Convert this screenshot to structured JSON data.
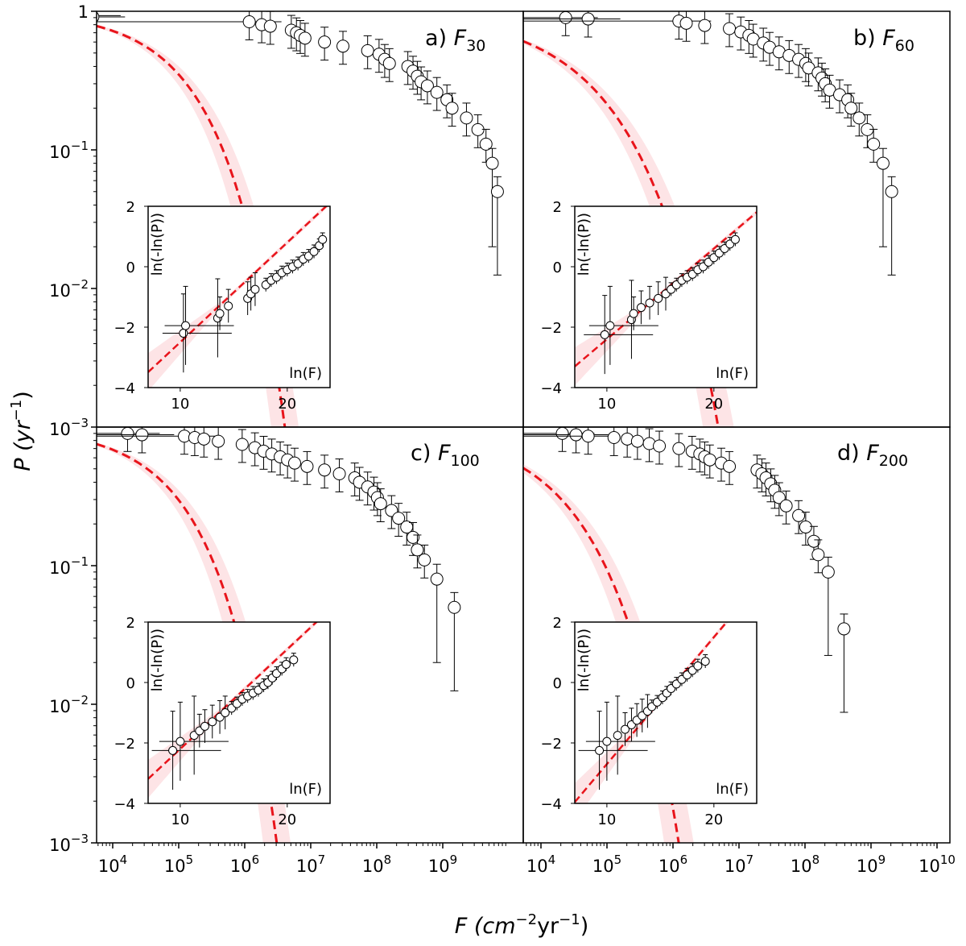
{
  "figure": {
    "ylabel": {
      "pre": "P (yr",
      "sup": "−1",
      "post": ")"
    },
    "xlabel": {
      "pre": "F (cm",
      "sup1": "−2",
      "mid": "yr",
      "sup2": "−1",
      "post": ")"
    },
    "y_ticks": [
      {
        "base": "1",
        "exp": ""
      },
      {
        "base": "10",
        "exp": "−1"
      },
      {
        "base": "10",
        "exp": "−2"
      },
      {
        "base": "10",
        "exp": "−3"
      }
    ],
    "x_ticks_left": [
      {
        "base": "10",
        "exp": "4"
      },
      {
        "base": "10",
        "exp": "5"
      },
      {
        "base": "10",
        "exp": "6"
      },
      {
        "base": "10",
        "exp": "7"
      },
      {
        "base": "10",
        "exp": "8"
      },
      {
        "base": "10",
        "exp": "9"
      }
    ],
    "x_ticks_right": [
      {
        "base": "10",
        "exp": "4"
      },
      {
        "base": "10",
        "exp": "5"
      },
      {
        "base": "10",
        "exp": "6"
      },
      {
        "base": "10",
        "exp": "7"
      },
      {
        "base": "10",
        "exp": "8"
      },
      {
        "base": "10",
        "exp": "9"
      },
      {
        "base": "10",
        "exp": "10"
      }
    ],
    "colors": {
      "fit": "#e8141b",
      "band": "#fde4e6",
      "marker_fill": "#ffffff",
      "ink": "#000000"
    }
  },
  "chart_data": [
    {
      "panel": "a",
      "label": {
        "prefix": "a) ",
        "var": "F",
        "sub": "30"
      },
      "type": "scatter",
      "xscale": "log",
      "yscale": "log",
      "xlim": [
        4000.0,
        15000000000.0
      ],
      "ylim": [
        0.001,
        1
      ],
      "points": [
        [
          3000.0,
          0.93
        ],
        [
          3500.0,
          0.91
        ],
        [
          900000.0,
          0.84
        ],
        [
          1400000.0,
          0.8
        ],
        [
          1900000.0,
          0.78
        ],
        [
          4000000.0,
          0.73
        ],
        [
          4800000.0,
          0.7
        ],
        [
          5500000.0,
          0.67
        ],
        [
          6500000.0,
          0.64
        ],
        [
          13000000.0,
          0.6
        ],
        [
          25000000.0,
          0.56
        ],
        [
          60000000.0,
          0.52
        ],
        [
          90000000.0,
          0.49
        ],
        [
          110000000.0,
          0.45
        ],
        [
          130000000.0,
          0.42
        ],
        [
          250000000.0,
          0.4
        ],
        [
          300000000.0,
          0.37
        ],
        [
          350000000.0,
          0.34
        ],
        [
          400000000.0,
          0.31
        ],
        [
          500000000.0,
          0.29
        ],
        [
          700000000.0,
          0.26
        ],
        [
          1000000000.0,
          0.23
        ],
        [
          1200000000.0,
          0.2
        ],
        [
          2000000000.0,
          0.17
        ],
        [
          3000000000.0,
          0.14
        ],
        [
          4000000000.0,
          0.11
        ],
        [
          5000000000.0,
          0.08
        ],
        [
          6000000000.0,
          0.05
        ]
      ],
      "fit": {
        "a": 1.5e-05,
        "k": 0.5
      },
      "inset": {
        "xlabel": "ln(F)",
        "ylabel": "ln(-ln(P))",
        "xticks": [
          "10",
          "20"
        ],
        "yticks": [
          "2",
          "0",
          "−2",
          "−4"
        ],
        "xlim": [
          7,
          24
        ],
        "ylim": [
          -4,
          2
        ],
        "points": [
          [
            10.3,
            -2.2
          ],
          [
            10.5,
            -1.95
          ],
          [
            13.5,
            -1.7
          ],
          [
            13.7,
            -1.55
          ],
          [
            14.5,
            -1.3
          ],
          [
            16.3,
            -1.05
          ],
          [
            16.6,
            -0.9
          ],
          [
            17.0,
            -0.75
          ],
          [
            18.0,
            -0.6
          ],
          [
            18.5,
            -0.45
          ],
          [
            19.0,
            -0.35
          ],
          [
            19.5,
            -0.2
          ],
          [
            20.0,
            -0.1
          ],
          [
            20.5,
            0.0
          ],
          [
            21.0,
            0.1
          ],
          [
            21.5,
            0.25
          ],
          [
            22.0,
            0.35
          ],
          [
            22.5,
            0.5
          ],
          [
            23.0,
            0.7
          ],
          [
            23.3,
            0.9
          ]
        ],
        "fit": {
          "slope": 0.33,
          "intercept": -5.8
        }
      }
    },
    {
      "panel": "b",
      "label": {
        "prefix": "b) ",
        "var": "F",
        "sub": "60"
      },
      "type": "scatter",
      "xscale": "log",
      "yscale": "log",
      "xlim": [
        4000.0,
        15000000000.0
      ],
      "ylim": [
        0.001,
        1
      ],
      "points": [
        [
          18000.0,
          0.9
        ],
        [
          40000.0,
          0.88
        ],
        [
          1000000.0,
          0.85
        ],
        [
          1300000.0,
          0.82
        ],
        [
          2500000.0,
          0.79
        ],
        [
          6000000.0,
          0.75
        ],
        [
          9000000.0,
          0.71
        ],
        [
          12000000.0,
          0.67
        ],
        [
          14000000.0,
          0.63
        ],
        [
          20000000.0,
          0.59
        ],
        [
          25000000.0,
          0.55
        ],
        [
          35000000.0,
          0.51
        ],
        [
          50000000.0,
          0.48
        ],
        [
          70000000.0,
          0.45
        ],
        [
          90000000.0,
          0.42
        ],
        [
          100000000.0,
          0.39
        ],
        [
          140000000.0,
          0.36
        ],
        [
          160000000.0,
          0.33
        ],
        [
          180000000.0,
          0.3
        ],
        [
          210000000.0,
          0.27
        ],
        [
          300000000.0,
          0.25
        ],
        [
          400000000.0,
          0.23
        ],
        [
          450000000.0,
          0.2
        ],
        [
          600000000.0,
          0.17
        ],
        [
          800000000.0,
          0.14
        ],
        [
          1000000000.0,
          0.11
        ],
        [
          1400000000.0,
          0.08
        ],
        [
          1900000000.0,
          0.05
        ]
      ],
      "fit": {
        "a": 4e-05,
        "k": 0.38
      },
      "inset": {
        "xlabel": "ln(F)",
        "ylabel": "ln(-ln(P))",
        "xticks": [
          "10",
          "20"
        ],
        "yticks": [
          "2",
          "0",
          "−2",
          "−4"
        ],
        "xlim": [
          7,
          24
        ],
        "ylim": [
          -4,
          2
        ],
        "points": [
          [
            9.8,
            -2.25
          ],
          [
            10.3,
            -1.95
          ],
          [
            12.3,
            -1.75
          ],
          [
            12.5,
            -1.55
          ],
          [
            13.2,
            -1.35
          ],
          [
            14.0,
            -1.2
          ],
          [
            14.8,
            -1.05
          ],
          [
            15.5,
            -0.9
          ],
          [
            16.0,
            -0.75
          ],
          [
            16.5,
            -0.6
          ],
          [
            17.0,
            -0.45
          ],
          [
            17.5,
            -0.35
          ],
          [
            18.0,
            -0.25
          ],
          [
            18.5,
            -0.1
          ],
          [
            19.0,
            0.0
          ],
          [
            19.5,
            0.15
          ],
          [
            20.0,
            0.3
          ],
          [
            20.5,
            0.45
          ],
          [
            21.0,
            0.6
          ],
          [
            21.5,
            0.75
          ],
          [
            22.0,
            0.9
          ]
        ],
        "fit": {
          "slope": 0.3,
          "intercept": -5.4
        }
      }
    },
    {
      "panel": "c",
      "label": {
        "prefix": "c) ",
        "var": "F",
        "sub": "100"
      },
      "type": "scatter",
      "xscale": "log",
      "yscale": "log",
      "xlim": [
        4000.0,
        15000000000.0
      ],
      "ylim": [
        0.001,
        1
      ],
      "points": [
        [
          12000.0,
          0.9
        ],
        [
          20000.0,
          0.88
        ],
        [
          90000.0,
          0.86
        ],
        [
          130000.0,
          0.84
        ],
        [
          180000.0,
          0.82
        ],
        [
          300000.0,
          0.79
        ],
        [
          700000.0,
          0.75
        ],
        [
          1100000.0,
          0.71
        ],
        [
          1500000.0,
          0.67
        ],
        [
          2000000.0,
          0.64
        ],
        [
          2700000.0,
          0.61
        ],
        [
          3500000.0,
          0.58
        ],
        [
          4500000.0,
          0.55
        ],
        [
          7000000.0,
          0.52
        ],
        [
          13000000.0,
          0.49
        ],
        [
          22000000.0,
          0.46
        ],
        [
          38000000.0,
          0.43
        ],
        [
          45000000.0,
          0.4
        ],
        [
          60000000.0,
          0.37
        ],
        [
          75000000.0,
          0.34
        ],
        [
          85000000.0,
          0.31
        ],
        [
          95000000.0,
          0.28
        ],
        [
          140000000.0,
          0.25
        ],
        [
          180000000.0,
          0.22
        ],
        [
          240000000.0,
          0.19
        ],
        [
          300000000.0,
          0.16
        ],
        [
          350000000.0,
          0.13
        ],
        [
          450000000.0,
          0.11
        ],
        [
          700000000.0,
          0.08
        ],
        [
          1300000000.0,
          0.05
        ]
      ],
      "fit": {
        "a": 2e-05,
        "k": 0.5
      },
      "inset": {
        "xlabel": "ln(F)",
        "ylabel": "ln(-ln(P))",
        "xticks": [
          "10",
          "20"
        ],
        "yticks": [
          "2",
          "0",
          "−2",
          "−4"
        ],
        "xlim": [
          7,
          24
        ],
        "ylim": [
          -4,
          2
        ],
        "points": [
          [
            9.3,
            -2.25
          ],
          [
            10.0,
            -1.95
          ],
          [
            11.3,
            -1.75
          ],
          [
            11.8,
            -1.6
          ],
          [
            12.3,
            -1.45
          ],
          [
            13.0,
            -1.3
          ],
          [
            13.7,
            -1.15
          ],
          [
            14.2,
            -1.0
          ],
          [
            14.8,
            -0.85
          ],
          [
            15.3,
            -0.7
          ],
          [
            15.8,
            -0.55
          ],
          [
            16.3,
            -0.45
          ],
          [
            16.8,
            -0.35
          ],
          [
            17.3,
            -0.25
          ],
          [
            17.8,
            -0.1
          ],
          [
            18.2,
            0.0
          ],
          [
            18.6,
            0.15
          ],
          [
            19.0,
            0.3
          ],
          [
            19.5,
            0.45
          ],
          [
            19.9,
            0.6
          ],
          [
            20.6,
            0.75
          ]
        ],
        "fit": {
          "slope": 0.33,
          "intercept": -5.5
        }
      }
    },
    {
      "panel": "d",
      "label": {
        "prefix": "d) ",
        "var": "F",
        "sub": "200"
      },
      "type": "scatter",
      "xscale": "log",
      "yscale": "log",
      "xlim": [
        4000.0,
        15000000000.0
      ],
      "ylim": [
        0.001,
        1
      ],
      "points": [
        [
          16000.0,
          0.9
        ],
        [
          26000.0,
          0.88
        ],
        [
          40000.0,
          0.86
        ],
        [
          100000.0,
          0.84
        ],
        [
          160000.0,
          0.82
        ],
        [
          230000.0,
          0.79
        ],
        [
          350000.0,
          0.76
        ],
        [
          500000.0,
          0.73
        ],
        [
          1000000.0,
          0.7
        ],
        [
          1600000.0,
          0.67
        ],
        [
          2100000.0,
          0.64
        ],
        [
          2500000.0,
          0.61
        ],
        [
          3000000.0,
          0.58
        ],
        [
          4500000.0,
          0.55
        ],
        [
          6000000.0,
          0.52
        ],
        [
          16000000.0,
          0.49
        ],
        [
          19000000.0,
          0.46
        ],
        [
          22000000.0,
          0.43
        ],
        [
          26000000.0,
          0.39
        ],
        [
          30000000.0,
          0.35
        ],
        [
          35000000.0,
          0.31
        ],
        [
          45000000.0,
          0.27
        ],
        [
          70000000.0,
          0.23
        ],
        [
          90000000.0,
          0.19
        ],
        [
          120000000.0,
          0.15
        ],
        [
          140000000.0,
          0.12
        ],
        [
          200000000.0,
          0.09
        ],
        [
          350000000.0,
          0.035
        ]
      ],
      "fit": {
        "a": 0.0001,
        "k": 0.42
      },
      "inset": {
        "xlabel": "ln(F)",
        "ylabel": "ln(-ln(P))",
        "xticks": [
          "10",
          "20"
        ],
        "yticks": [
          "2",
          "0",
          "−2",
          "−4"
        ],
        "xlim": [
          7,
          24
        ],
        "ylim": [
          -4,
          2
        ],
        "points": [
          [
            9.3,
            -2.25
          ],
          [
            10.0,
            -1.95
          ],
          [
            11.0,
            -1.75
          ],
          [
            11.7,
            -1.55
          ],
          [
            12.3,
            -1.4
          ],
          [
            12.8,
            -1.25
          ],
          [
            13.3,
            -1.1
          ],
          [
            13.8,
            -0.95
          ],
          [
            14.2,
            -0.8
          ],
          [
            14.7,
            -0.65
          ],
          [
            15.2,
            -0.5
          ],
          [
            15.6,
            -0.35
          ],
          [
            16.0,
            -0.2
          ],
          [
            16.5,
            -0.05
          ],
          [
            17.0,
            0.1
          ],
          [
            17.5,
            0.25
          ],
          [
            18.0,
            0.4
          ],
          [
            18.5,
            0.55
          ],
          [
            19.2,
            0.7
          ]
        ],
        "fit": {
          "slope": 0.42,
          "intercept": -6.9
        }
      }
    }
  ]
}
